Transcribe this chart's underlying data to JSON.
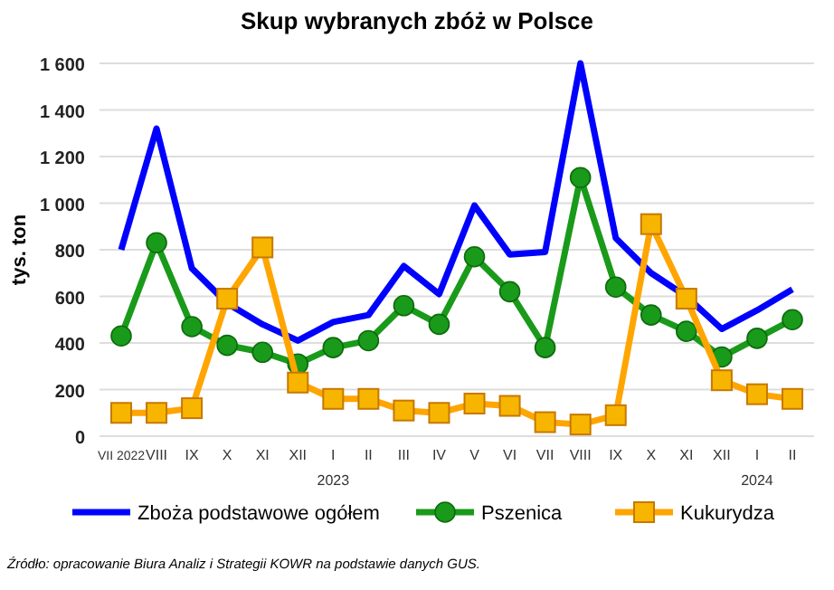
{
  "chart_data": {
    "type": "line",
    "title": "Skup wybranych zbóż w Polsce",
    "ylabel": "tys. ton",
    "categories": [
      "VII 2022",
      "VIII",
      "IX",
      "X",
      "XI",
      "XII",
      "I\n2023",
      "II",
      "III",
      "IV",
      "V",
      "VI",
      "VII",
      "VIII",
      "IX",
      "X",
      "XI",
      "XII",
      "I\n2024",
      "II"
    ],
    "series": [
      {
        "name": "Zboża podstawowe ogółem",
        "color": "#0000ff",
        "marker": "none",
        "values": [
          800,
          1320,
          720,
          570,
          480,
          410,
          490,
          520,
          730,
          610,
          990,
          780,
          790,
          1600,
          850,
          700,
          600,
          460,
          540,
          630
        ]
      },
      {
        "name": "Pszenica",
        "color": "#1a9a1a",
        "marker": "circle",
        "values": [
          430,
          830,
          470,
          390,
          360,
          310,
          380,
          410,
          560,
          480,
          770,
          620,
          380,
          1110,
          640,
          520,
          450,
          340,
          420,
          500
        ]
      },
      {
        "name": "Kukurydza",
        "color": "#ffa500",
        "marker": "square",
        "values": [
          100,
          100,
          120,
          590,
          810,
          230,
          160,
          160,
          110,
          100,
          140,
          130,
          60,
          50,
          90,
          910,
          590,
          240,
          180,
          160
        ]
      }
    ],
    "ylim": [
      0,
      1600
    ],
    "yticks": [
      0,
      200,
      400,
      600,
      800,
      {
        "value": 1000,
        "label": "1 000"
      },
      {
        "value": 1200,
        "label": "1 200"
      },
      {
        "value": 1400,
        "label": "1 400"
      },
      {
        "value": 1600,
        "label": "1 600"
      }
    ],
    "grid": "y",
    "legend": "bottom",
    "line_style": "solid",
    "annotations": [
      "Źródło: opracowanie Biura Analiz i Strategii KOWR na podstawie danych GUS."
    ]
  }
}
